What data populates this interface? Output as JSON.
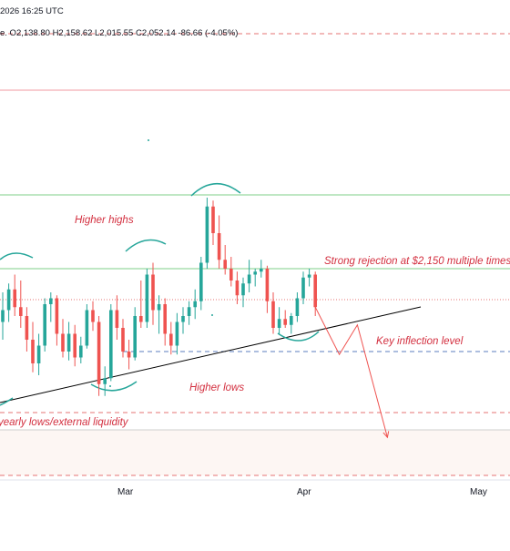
{
  "header": {
    "timestamp": "2026 16:25 UTC",
    "ohlc_line": "e. O2,138.80  H2,158.62  L2,015.55  C2,052.14  -86.66 (-4.05%)"
  },
  "colors": {
    "bull": "#26a69a",
    "bear": "#ef5350",
    "annotation": "#d32f3f",
    "support_line": "#000000",
    "resistance_green": "#7fcf8a",
    "dashed_red": "#e57373",
    "dashed_blue": "#5b7cbf",
    "zone_fill": "#fdf6f3",
    "top_red_line": "#f19aa0"
  },
  "chart_data": {
    "type": "candlestick",
    "x_axis": {
      "ticks": [
        "Mar",
        "Apr",
        "May"
      ]
    },
    "y_range": [
      1700,
      2420
    ],
    "candles": [
      {
        "d": "Feb-04",
        "o": 2060,
        "h": 2110,
        "l": 2030,
        "c": 2080
      },
      {
        "d": "Feb-05",
        "o": 2080,
        "h": 2125,
        "l": 2060,
        "c": 2115
      },
      {
        "d": "Feb-06",
        "o": 2115,
        "h": 2140,
        "l": 2070,
        "c": 2085
      },
      {
        "d": "Feb-07",
        "o": 2085,
        "h": 2130,
        "l": 2050,
        "c": 2070
      },
      {
        "d": "Feb-08",
        "o": 2070,
        "h": 2085,
        "l": 2010,
        "c": 2030
      },
      {
        "d": "Feb-09",
        "o": 2030,
        "h": 2060,
        "l": 1975,
        "c": 1990
      },
      {
        "d": "Feb-10",
        "o": 1990,
        "h": 2040,
        "l": 1970,
        "c": 2020
      },
      {
        "d": "Feb-11",
        "o": 2020,
        "h": 2100,
        "l": 2010,
        "c": 2090
      },
      {
        "d": "Feb-12",
        "o": 2090,
        "h": 2110,
        "l": 2060,
        "c": 2100
      },
      {
        "d": "Feb-13",
        "o": 2100,
        "h": 2105,
        "l": 2020,
        "c": 2040
      },
      {
        "d": "Feb-14",
        "o": 2040,
        "h": 2065,
        "l": 2000,
        "c": 2010
      },
      {
        "d": "Feb-15",
        "o": 2010,
        "h": 2060,
        "l": 1995,
        "c": 2040
      },
      {
        "d": "Feb-16",
        "o": 2040,
        "h": 2055,
        "l": 1985,
        "c": 2000
      },
      {
        "d": "Feb-17",
        "o": 2000,
        "h": 2035,
        "l": 1990,
        "c": 2020
      },
      {
        "d": "Feb-18",
        "o": 2020,
        "h": 2090,
        "l": 2015,
        "c": 2080
      },
      {
        "d": "Feb-19",
        "o": 2080,
        "h": 2095,
        "l": 2045,
        "c": 2060
      },
      {
        "d": "Feb-20",
        "o": 2060,
        "h": 2070,
        "l": 1935,
        "c": 1955
      },
      {
        "d": "Feb-21",
        "o": 1955,
        "h": 1985,
        "l": 1935,
        "c": 1965
      },
      {
        "d": "Feb-22",
        "o": 1965,
        "h": 2090,
        "l": 1960,
        "c": 2080
      },
      {
        "d": "Feb-23",
        "o": 2080,
        "h": 2105,
        "l": 2030,
        "c": 2050
      },
      {
        "d": "Feb-24",
        "o": 2050,
        "h": 2065,
        "l": 2000,
        "c": 2010
      },
      {
        "d": "Feb-25",
        "o": 2010,
        "h": 2030,
        "l": 1980,
        "c": 2000
      },
      {
        "d": "Feb-26",
        "o": 2000,
        "h": 2085,
        "l": 1995,
        "c": 2070
      },
      {
        "d": "Feb-27",
        "o": 2070,
        "h": 2130,
        "l": 2050,
        "c": 2060
      },
      {
        "d": "Feb-28",
        "o": 2060,
        "h": 2150,
        "l": 2050,
        "c": 2140
      },
      {
        "d": "Mar-01",
        "o": 2140,
        "h": 2160,
        "l": 2055,
        "c": 2080
      },
      {
        "d": "Mar-02",
        "o": 2080,
        "h": 2105,
        "l": 2040,
        "c": 2090
      },
      {
        "d": "Mar-03",
        "o": 2090,
        "h": 2100,
        "l": 2020,
        "c": 2040
      },
      {
        "d": "Mar-04",
        "o": 2040,
        "h": 2060,
        "l": 2005,
        "c": 2020
      },
      {
        "d": "Mar-05",
        "o": 2020,
        "h": 2075,
        "l": 2005,
        "c": 2060
      },
      {
        "d": "Mar-06",
        "o": 2060,
        "h": 2085,
        "l": 2040,
        "c": 2070
      },
      {
        "d": "Mar-07",
        "o": 2070,
        "h": 2095,
        "l": 2055,
        "c": 2085
      },
      {
        "d": "Mar-08",
        "o": 2085,
        "h": 2115,
        "l": 2065,
        "c": 2095
      },
      {
        "d": "Mar-09",
        "o": 2095,
        "h": 2170,
        "l": 2080,
        "c": 2160
      },
      {
        "d": "Mar-10",
        "o": 2160,
        "h": 2270,
        "l": 2150,
        "c": 2255
      },
      {
        "d": "Mar-11",
        "o": 2255,
        "h": 2265,
        "l": 2190,
        "c": 2210
      },
      {
        "d": "Mar-12",
        "o": 2210,
        "h": 2240,
        "l": 2150,
        "c": 2165
      },
      {
        "d": "Mar-13",
        "o": 2165,
        "h": 2190,
        "l": 2140,
        "c": 2150
      },
      {
        "d": "Mar-14",
        "o": 2150,
        "h": 2170,
        "l": 2120,
        "c": 2130
      },
      {
        "d": "Mar-15",
        "o": 2130,
        "h": 2145,
        "l": 2090,
        "c": 2105
      },
      {
        "d": "Mar-16",
        "o": 2105,
        "h": 2135,
        "l": 2085,
        "c": 2125
      },
      {
        "d": "Mar-17",
        "o": 2125,
        "h": 2165,
        "l": 2110,
        "c": 2140
      },
      {
        "d": "Mar-18",
        "o": 2140,
        "h": 2150,
        "l": 2120,
        "c": 2145
      },
      {
        "d": "Mar-19",
        "o": 2145,
        "h": 2165,
        "l": 2135,
        "c": 2150
      },
      {
        "d": "Mar-20",
        "o": 2150,
        "h": 2155,
        "l": 2075,
        "c": 2095
      },
      {
        "d": "Mar-21",
        "o": 2095,
        "h": 2110,
        "l": 2040,
        "c": 2050
      },
      {
        "d": "Mar-22",
        "o": 2050,
        "h": 2085,
        "l": 2040,
        "c": 2065
      },
      {
        "d": "Mar-23",
        "o": 2065,
        "h": 2080,
        "l": 2050,
        "c": 2055
      },
      {
        "d": "Mar-24",
        "o": 2055,
        "h": 2075,
        "l": 2040,
        "c": 2070
      },
      {
        "d": "Mar-25",
        "o": 2070,
        "h": 2110,
        "l": 2060,
        "c": 2100
      },
      {
        "d": "Mar-26",
        "o": 2100,
        "h": 2145,
        "l": 2090,
        "c": 2135
      },
      {
        "d": "Mar-27",
        "o": 2135,
        "h": 2150,
        "l": 2120,
        "c": 2140
      },
      {
        "d": "Mar-28",
        "o": 2140,
        "h": 2145,
        "l": 2070,
        "c": 2085
      }
    ],
    "levels": {
      "resistance_upper": 2250,
      "resistance": 2150,
      "current_price_dotted": 2085,
      "key_inflection": 2010,
      "yearly_lows": 1875
    },
    "projection": [
      {
        "d": "Mar-28",
        "v": 2085
      },
      {
        "d": "Apr-01",
        "v": 2005
      },
      {
        "d": "Apr-04",
        "v": 2055
      },
      {
        "d": "Apr-09",
        "v": 1865
      }
    ],
    "annotations": {
      "higher_highs": "Higher highs",
      "strong_rejection": "Strong rejection at $2,150 multiple times",
      "key_inflection": "Key inflection level",
      "higher_lows": "Higher lows",
      "yearly_lows": "yearly lows/external liquidity"
    }
  }
}
